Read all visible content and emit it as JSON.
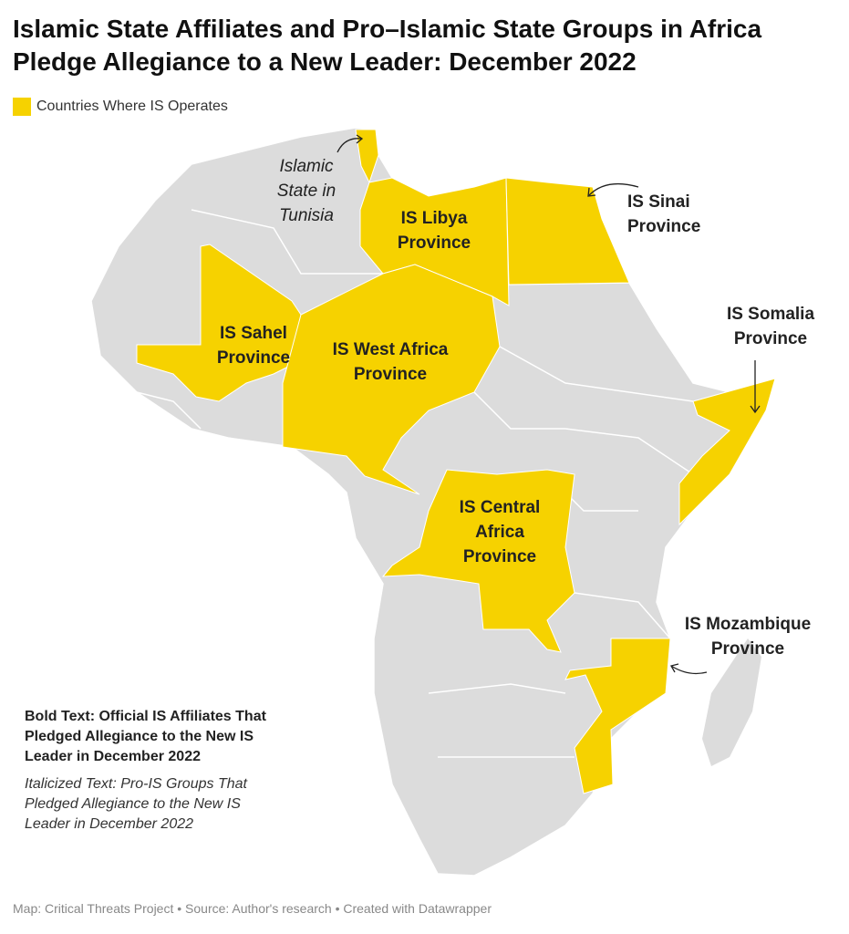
{
  "title": "Islamic State Affiliates and Pro–Islamic State Groups in Africa Pledge Allegiance to a New Leader: December 2022",
  "legend": {
    "label": "Countries Where IS Operates",
    "color": "#f6d200"
  },
  "labels": [
    {
      "lines": [
        "Islamic",
        "State in",
        "Tunisia"
      ],
      "style": "italic"
    },
    {
      "lines": [
        "IS Libya",
        "Province"
      ],
      "style": "bold"
    },
    {
      "lines": [
        "IS Sinai",
        "Province"
      ],
      "style": "bold"
    },
    {
      "lines": [
        "IS Somalia",
        "Province"
      ],
      "style": "bold"
    },
    {
      "lines": [
        "IS Sahel",
        "Province"
      ],
      "style": "bold"
    },
    {
      "lines": [
        "IS West Africa",
        "Province"
      ],
      "style": "bold"
    },
    {
      "lines": [
        "IS Central",
        "Africa",
        "Province"
      ],
      "style": "bold"
    },
    {
      "lines": [
        "IS Mozambique",
        "Province"
      ],
      "style": "bold"
    }
  ],
  "notes": {
    "bold": "Bold Text: Official IS Affiliates That Pledged Allegiance to the New IS Leader in December 2022",
    "italic": "Italicized Text: Pro-IS Groups That Pledged Allegiance to the New IS Leader in December 2022"
  },
  "footer": "Map: Critical Threats Project • Source: Author's research • Created with Datawrapper"
}
